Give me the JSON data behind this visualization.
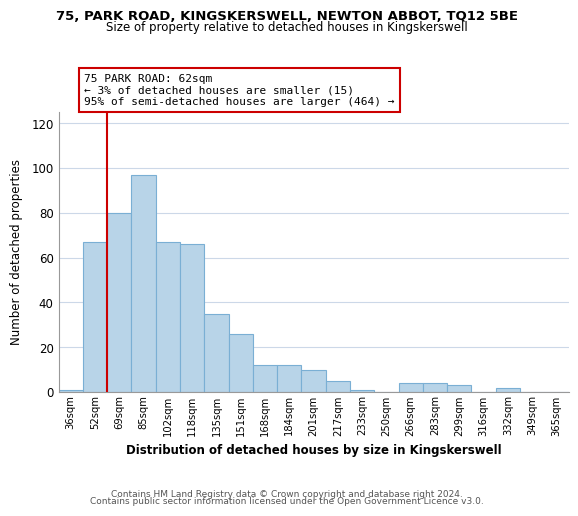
{
  "title": "75, PARK ROAD, KINGSKERSWELL, NEWTON ABBOT, TQ12 5BE",
  "subtitle": "Size of property relative to detached houses in Kingskerswell",
  "xlabel": "Distribution of detached houses by size in Kingskerswell",
  "ylabel": "Number of detached properties",
  "bar_color": "#b8d4e8",
  "bar_edge_color": "#7aafd4",
  "categories": [
    "36sqm",
    "52sqm",
    "69sqm",
    "85sqm",
    "102sqm",
    "118sqm",
    "135sqm",
    "151sqm",
    "168sqm",
    "184sqm",
    "201sqm",
    "217sqm",
    "233sqm",
    "250sqm",
    "266sqm",
    "283sqm",
    "299sqm",
    "316sqm",
    "332sqm",
    "349sqm",
    "365sqm"
  ],
  "values": [
    1,
    67,
    80,
    97,
    67,
    66,
    35,
    26,
    12,
    12,
    10,
    5,
    1,
    0,
    4,
    4,
    3,
    0,
    2,
    0,
    0
  ],
  "ylim": [
    0,
    125
  ],
  "yticks": [
    0,
    20,
    40,
    60,
    80,
    100,
    120
  ],
  "vline_color": "#cc0000",
  "vline_x_index": 2,
  "annotation_title": "75 PARK ROAD: 62sqm",
  "annotation_line1": "← 3% of detached houses are smaller (15)",
  "annotation_line2": "95% of semi-detached houses are larger (464) →",
  "annotation_box_edge": "#cc0000",
  "footer1": "Contains HM Land Registry data © Crown copyright and database right 2024.",
  "footer2": "Contains public sector information licensed under the Open Government Licence v3.0.",
  "background_color": "#ffffff",
  "grid_color": "#ccd8e8"
}
